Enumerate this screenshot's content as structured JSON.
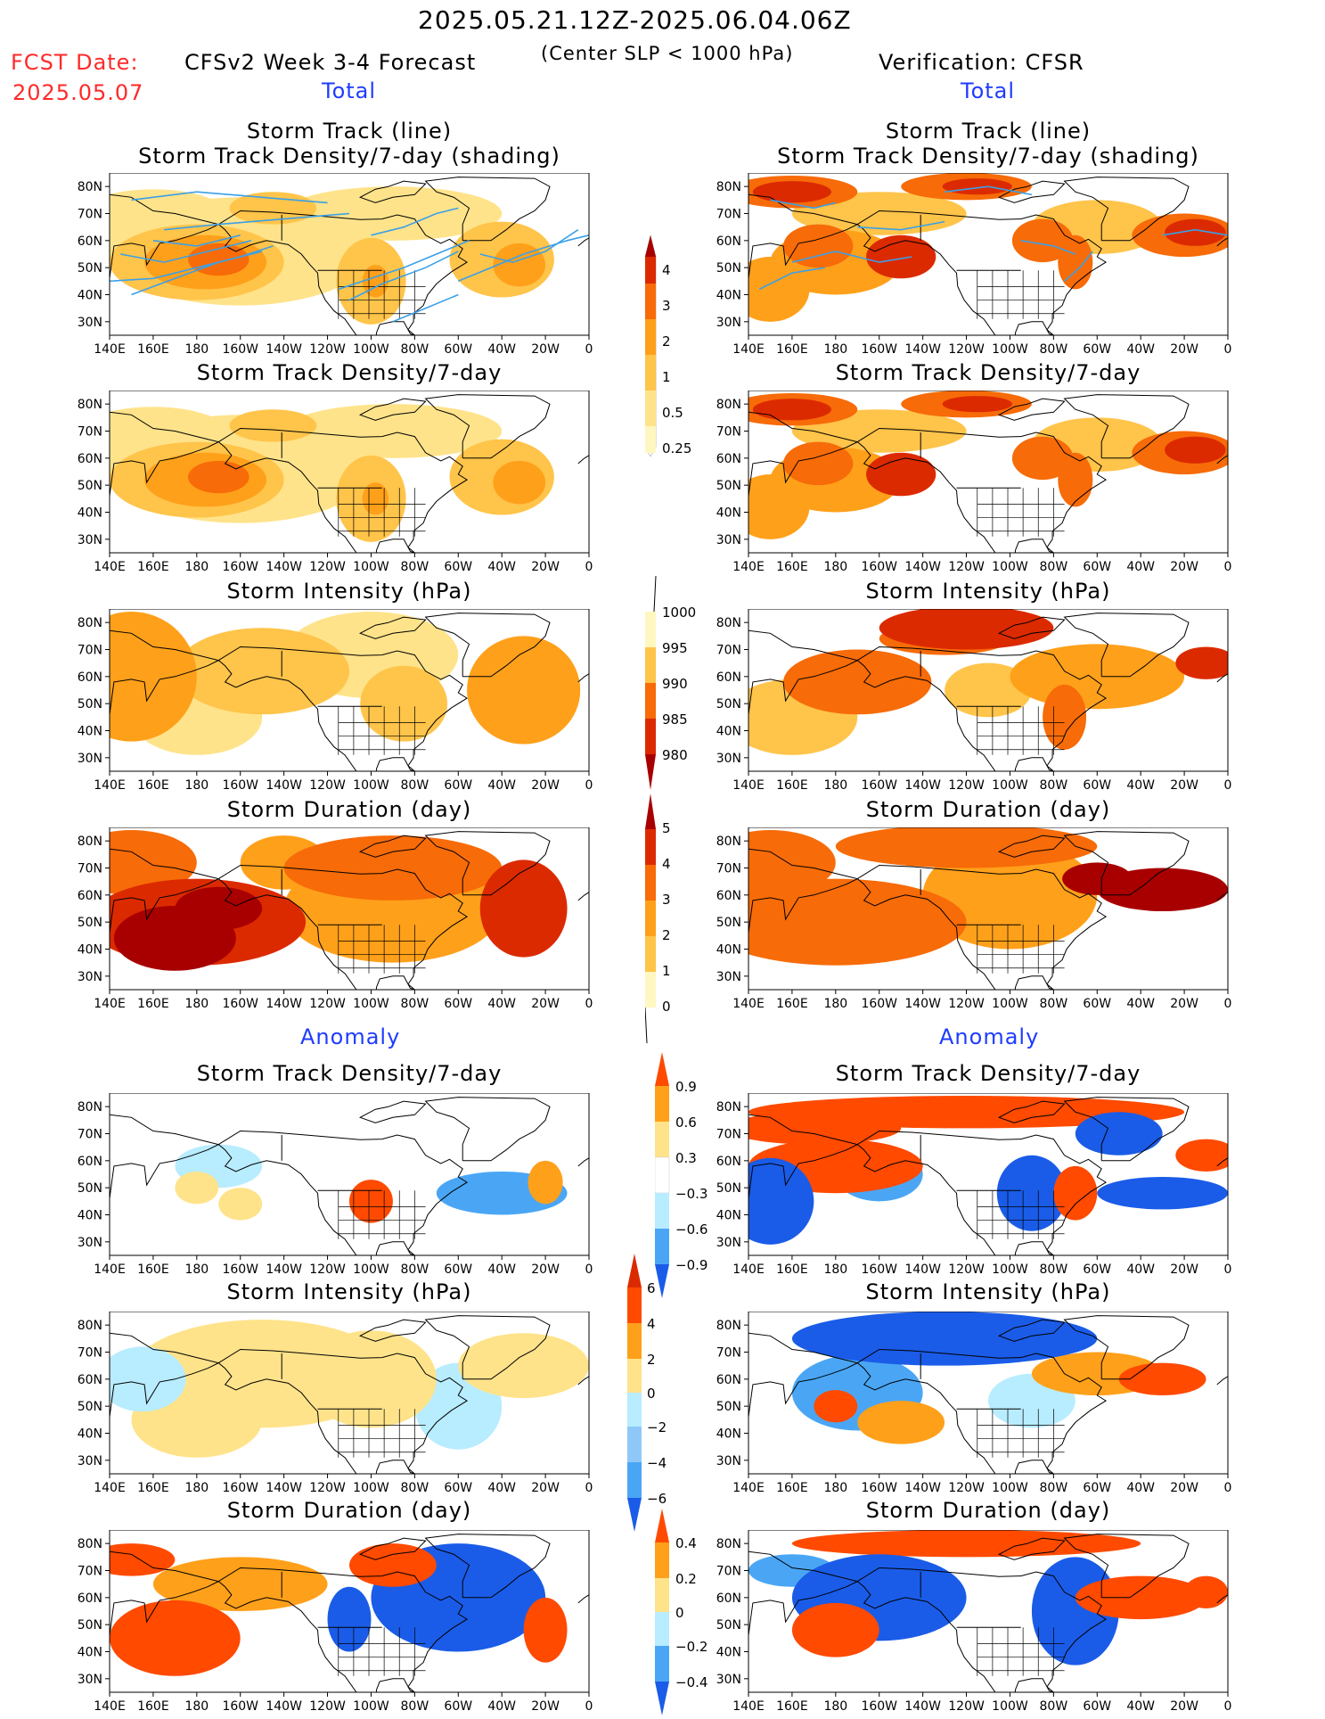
{
  "header": {
    "time_range": "2025.05.21.12Z-2025.06.04.06Z",
    "fcst_label": "FCST Date:",
    "fcst_date": "2025.05.07",
    "model": "CFSv2 Week 3-4 Forecast",
    "criteria": "(Center SLP < 1000 hPa)",
    "verification": "Verification: CFSR",
    "total_label": "Total",
    "anomaly_label": "Anomaly"
  },
  "panel_titles": {
    "track_line": "Storm Track (line)",
    "track_shading": "Storm Track Density/7-day (shading)",
    "density": "Storm Track Density/7-day",
    "intensity": "Storm Intensity (hPa)",
    "duration": "Storm Duration (day)"
  },
  "axes": {
    "lon_ticks": [
      "140E",
      "160E",
      "180",
      "160W",
      "140W",
      "120W",
      "100W",
      "80W",
      "60W",
      "40W",
      "20W",
      "0"
    ],
    "lat_ticks": [
      "80N",
      "70N",
      "60N",
      "50N",
      "40N",
      "30N"
    ]
  },
  "colorbars": {
    "density_total": [
      "0.25",
      "0.5",
      "1",
      "2",
      "3",
      "4"
    ],
    "intensity_total": [
      "1000",
      "995",
      "990",
      "985",
      "980"
    ],
    "duration_total": [
      "0",
      "1",
      "2",
      "3",
      "4",
      "5"
    ],
    "density_anom": [
      "0.9",
      "0.6",
      "0.3",
      "−0.3",
      "−0.6",
      "−0.9"
    ],
    "intensity_anom": [
      "6",
      "4",
      "2",
      "0",
      "−2",
      "−4",
      "−6"
    ],
    "duration_anom": [
      "0.4",
      "0.2",
      "0",
      "−0.2",
      "−0.4"
    ]
  },
  "colors": {
    "seq": [
      "#fff7c0",
      "#ffe38a",
      "#ffc44a",
      "#ffa01a",
      "#f76b08",
      "#dc2a00",
      "#a80000"
    ],
    "div_warm": [
      "#ffe38a",
      "#ffa01a",
      "#ff4a00"
    ],
    "div_cool": [
      "#b8ecff",
      "#4aa6f5",
      "#1a5ce8"
    ],
    "track_line": "#3aa0e8",
    "land": "#000000"
  },
  "panels": [
    {
      "id": "fc-track",
      "col": 0,
      "title": [
        "track_line",
        "track_shading"
      ],
      "scheme": "seq",
      "variant": "fc-dens",
      "tracks": true
    },
    {
      "id": "ob-track",
      "col": 1,
      "title": [
        "track_line",
        "track_shading"
      ],
      "scheme": "seq",
      "variant": "ob-dens",
      "tracks": true
    },
    {
      "id": "fc-dens",
      "col": 0,
      "title": [
        "density"
      ],
      "scheme": "seq",
      "variant": "fc-dens",
      "tracks": false
    },
    {
      "id": "ob-dens",
      "col": 1,
      "title": [
        "density"
      ],
      "scheme": "seq",
      "variant": "ob-dens",
      "tracks": false
    },
    {
      "id": "fc-int",
      "col": 0,
      "title": [
        "intensity"
      ],
      "scheme": "seq",
      "variant": "fc-int",
      "tracks": false
    },
    {
      "id": "ob-int",
      "col": 1,
      "title": [
        "intensity"
      ],
      "scheme": "seq",
      "variant": "ob-int",
      "tracks": false
    },
    {
      "id": "fc-dur",
      "col": 0,
      "title": [
        "duration"
      ],
      "scheme": "seq",
      "variant": "fc-dur",
      "tracks": false
    },
    {
      "id": "ob-dur",
      "col": 1,
      "title": [
        "duration"
      ],
      "scheme": "seq",
      "variant": "ob-dur",
      "tracks": false
    },
    {
      "id": "fc-adens",
      "col": 0,
      "title": [
        "density"
      ],
      "scheme": "div",
      "variant": "fc-adens",
      "tracks": false
    },
    {
      "id": "ob-adens",
      "col": 1,
      "title": [
        "density"
      ],
      "scheme": "div",
      "variant": "ob-adens",
      "tracks": false
    },
    {
      "id": "fc-aint",
      "col": 0,
      "title": [
        "intensity"
      ],
      "scheme": "div",
      "variant": "fc-aint",
      "tracks": false
    },
    {
      "id": "ob-aint",
      "col": 1,
      "title": [
        "intensity"
      ],
      "scheme": "div",
      "variant": "ob-aint",
      "tracks": false
    },
    {
      "id": "fc-adur",
      "col": 0,
      "title": [
        "duration"
      ],
      "scheme": "div",
      "variant": "fc-adur",
      "tracks": false
    },
    {
      "id": "ob-adur",
      "col": 1,
      "title": [
        "duration"
      ],
      "scheme": "div",
      "variant": "ob-adur",
      "tracks": false
    }
  ]
}
